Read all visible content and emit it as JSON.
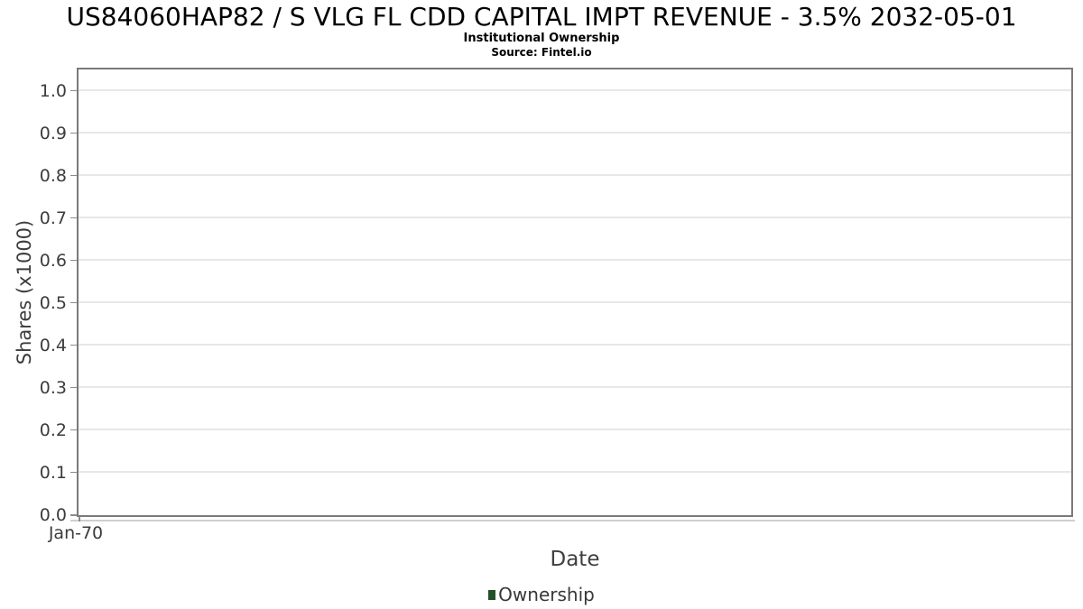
{
  "chart_data": {
    "type": "bar",
    "title": "US84060HAP82 / S VLG FL CDD CAPITAL IMPT REVENUE - 3.5% 2032-05-01",
    "subtitle": "Institutional Ownership",
    "source": "Source: Fintel.io",
    "xlabel": "Date",
    "ylabel": "Shares (x1000)",
    "x_tick_labels": [
      "Jan-70"
    ],
    "y_ticks": [
      0.0,
      0.1,
      0.2,
      0.3,
      0.4,
      0.5,
      0.6,
      0.7,
      0.8,
      0.9,
      1.0
    ],
    "ylim": [
      0,
      1.05
    ],
    "grid": "horizontal",
    "legend_position": "bottom",
    "series": [
      {
        "name": "Ownership",
        "color": "#235026",
        "x": [],
        "values": []
      }
    ]
  },
  "colors": {
    "plot_border": "#7a7a7a",
    "gridline": "#e7e7e7",
    "tick_text": "#3c3c3c",
    "legend_marker_green": "#235026"
  }
}
